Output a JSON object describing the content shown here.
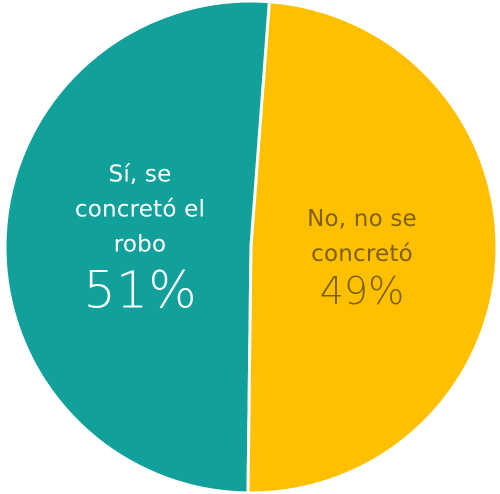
{
  "chart_data": {
    "type": "pie",
    "title": "",
    "categories": [
      "Sí, se concretó el robo",
      "No, no se concretó"
    ],
    "values": [
      51,
      49
    ],
    "colors": [
      "#12a19a",
      "#ffc001"
    ],
    "label_colors": [
      "#ffffff",
      "#7f6000"
    ],
    "labels": [
      {
        "lines": [
          "Sí, se",
          "concretó el",
          "robo"
        ],
        "pct": "51%"
      },
      {
        "lines": [
          "No, no se",
          "concretó"
        ],
        "pct": "49%"
      }
    ]
  }
}
